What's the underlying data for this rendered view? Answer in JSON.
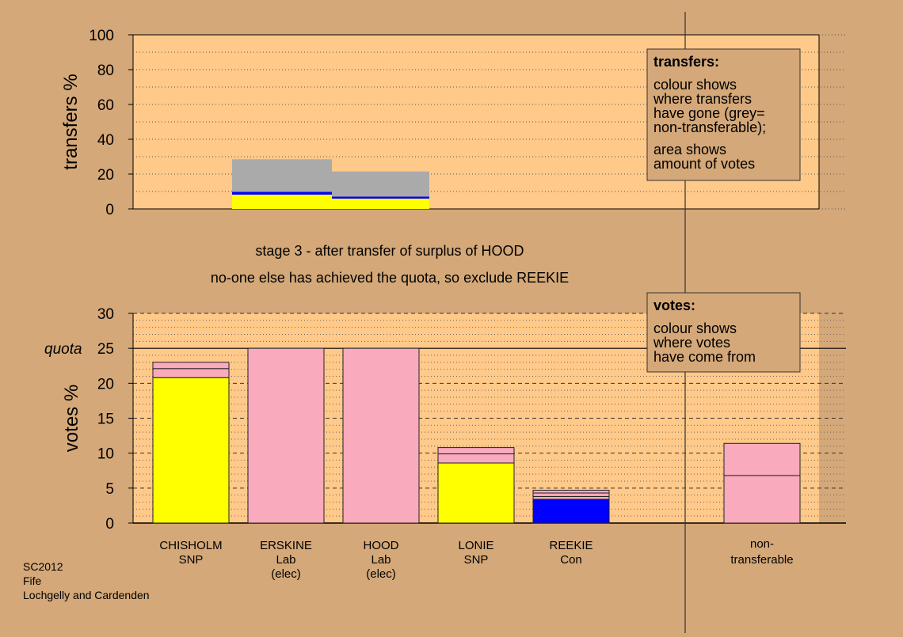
{
  "page": {
    "bg_color": "#d4a878",
    "plot_color": "#ffc98a",
    "footer": [
      "SC2012",
      "Fife",
      "Lochgelly and Cardenden"
    ],
    "captions": [
      "stage 3 - after transfer of surplus of HOOD",
      "no-one else has achieved the quota, so exclude REEKIE"
    ]
  },
  "colors": {
    "yellow": "#ffff00",
    "pink": "#f9aabc",
    "blue": "#0000ff",
    "grey": "#aaaaaa"
  },
  "chart_data": [
    {
      "type": "bar",
      "panel": "transfers",
      "ylabel": "transfers %",
      "ylim": [
        0,
        100
      ],
      "ticks": [
        0,
        20,
        40,
        60,
        80,
        100
      ],
      "grid": "dotted every 10",
      "transfer_blocks": [
        {
          "from": "ERSKINE",
          "total": 28.5,
          "stack": [
            {
              "color": "yellow",
              "from": 0,
              "to": 8.2
            },
            {
              "color": "blue",
              "from": 8.2,
              "to": 9.8
            },
            {
              "color": "grey",
              "from": 9.8,
              "to": 28.5
            }
          ]
        },
        {
          "from": "HOOD",
          "total": 21.5,
          "stack": [
            {
              "color": "yellow",
              "from": 0,
              "to": 5.9
            },
            {
              "color": "blue",
              "from": 5.9,
              "to": 7.1
            },
            {
              "color": "grey",
              "from": 7.1,
              "to": 21.5
            }
          ]
        }
      ],
      "legend": {
        "title": "transfers:",
        "lines": [
          "colour shows",
          "where transfers",
          "have gone (grey=",
          "non-transferable);",
          "area shows",
          "amount of votes"
        ]
      }
    },
    {
      "type": "bar",
      "panel": "votes",
      "ylabel": "votes %",
      "ylim": [
        0,
        30
      ],
      "ticks": [
        0,
        5,
        10,
        15,
        20,
        25,
        30
      ],
      "grid": "dashed every 5, dotted every 1",
      "quota": 25,
      "quota_label": "quota",
      "bars": [
        {
          "name": "CHISHOLM",
          "party": "SNP",
          "status": "",
          "segments": [
            {
              "color": "yellow",
              "from": 0,
              "to": 20.8
            },
            {
              "color": "pink",
              "from": 20.8,
              "to": 22.1
            },
            {
              "color": "pink",
              "from": 22.1,
              "to": 23.0
            }
          ]
        },
        {
          "name": "ERSKINE",
          "party": "Lab",
          "status": "(elec)",
          "segments": [
            {
              "color": "pink",
              "from": 0,
              "to": 25
            }
          ]
        },
        {
          "name": "HOOD",
          "party": "Lab",
          "status": "(elec)",
          "segments": [
            {
              "color": "pink",
              "from": 0,
              "to": 25
            }
          ]
        },
        {
          "name": "LONIE",
          "party": "SNP",
          "status": "",
          "segments": [
            {
              "color": "yellow",
              "from": 0,
              "to": 8.6
            },
            {
              "color": "pink",
              "from": 8.6,
              "to": 9.9
            },
            {
              "color": "pink",
              "from": 9.9,
              "to": 10.8
            }
          ]
        },
        {
          "name": "REEKIE",
          "party": "Con",
          "status": "",
          "segments": [
            {
              "color": "blue",
              "from": 0,
              "to": 3.4
            },
            {
              "color": "pink",
              "from": 3.4,
              "to": 3.8
            },
            {
              "color": "pink",
              "from": 3.8,
              "to": 4.3
            },
            {
              "color": "pink",
              "from": 4.3,
              "to": 4.7
            }
          ]
        }
      ],
      "nontransferable": {
        "name": "non-",
        "name2": "transferable",
        "segments": [
          {
            "color": "pink",
            "from": 0,
            "to": 6.8
          },
          {
            "color": "pink",
            "from": 6.8,
            "to": 11.4
          }
        ]
      },
      "legend": {
        "title": "votes:",
        "lines": [
          "colour shows",
          "where votes",
          "have come from"
        ]
      }
    }
  ]
}
